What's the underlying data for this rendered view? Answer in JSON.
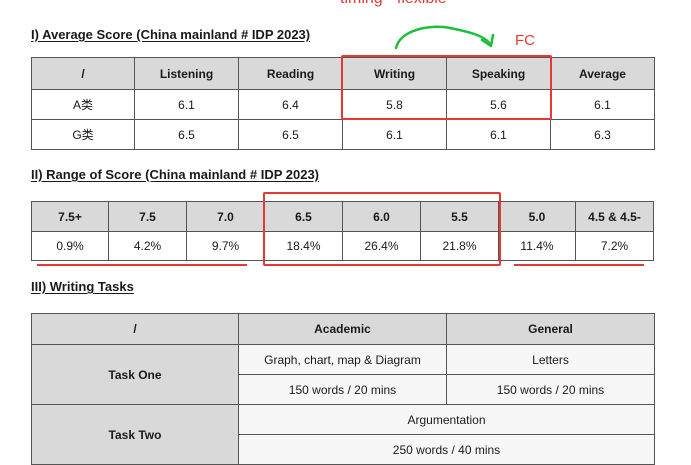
{
  "top_note": "timing - flexible",
  "section1": {
    "title": "I) Average Score (China mainland # IDP 2023)",
    "headers": [
      "/",
      "Listening",
      "Reading",
      "Writing",
      "Speaking",
      "Average"
    ],
    "rows": [
      [
        "A类",
        "6.1",
        "6.4",
        "5.8",
        "5.6",
        "6.1"
      ],
      [
        "G类",
        "6.5",
        "6.5",
        "6.1",
        "6.1",
        "6.3"
      ]
    ],
    "annotation": "FC"
  },
  "section2": {
    "title": "II) Range of Score (China mainland # IDP 2023)",
    "headers": [
      "7.5+",
      "7.5",
      "7.0",
      "6.5",
      "6.0",
      "5.5",
      "5.0",
      "4.5 & 4.5-"
    ],
    "values": [
      "0.9%",
      "4.2%",
      "9.7%",
      "18.4%",
      "26.4%",
      "21.8%",
      "11.4%",
      "7.2%"
    ]
  },
  "section3": {
    "title": "III) Writing Tasks",
    "headers": [
      "/",
      "Academic",
      "General"
    ],
    "task_one": {
      "label": "Task One",
      "academic_type": "Graph, chart, map & Diagram",
      "general_type": "Letters",
      "academic_length": "150 words / 20 mins",
      "general_length": "150 words / 20 mins"
    },
    "task_two": {
      "label": "Task Two",
      "type": "Argumentation",
      "length": "250 words / 40 mins"
    }
  },
  "colors": {
    "annotation": "#e53935",
    "header_bg": "#d9d9d9",
    "arrow": "#1fbf3a"
  }
}
